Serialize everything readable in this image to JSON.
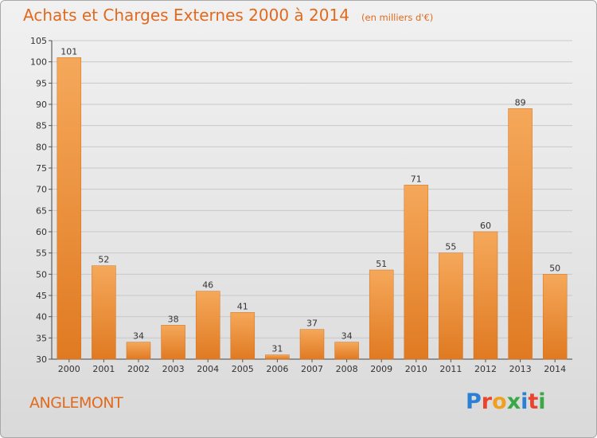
{
  "header": {
    "title": "Achats et Charges Externes 2000 à 2014",
    "subtitle": "(en milliers d'€)"
  },
  "footer": {
    "commune": "ANGLEMONT",
    "brand_letters": [
      "P",
      "r",
      "o",
      "x",
      "i",
      "t",
      "i"
    ]
  },
  "colors": {
    "accent": "#e06a1e",
    "bar_light": "#f5a85a",
    "bar_dark": "#e07a22",
    "brand": [
      "#2b7fd4",
      "#e8452c",
      "#f0a020",
      "#3aa845",
      "#2b7fd4",
      "#e8452c",
      "#3aa845"
    ]
  },
  "chart_data": {
    "type": "bar",
    "title": "Achats et Charges Externes 2000 à 2014",
    "subtitle": "(en milliers d'€)",
    "categories": [
      "2000",
      "2001",
      "2002",
      "2003",
      "2004",
      "2005",
      "2006",
      "2007",
      "2008",
      "2009",
      "2010",
      "2011",
      "2012",
      "2013",
      "2014"
    ],
    "values": [
      101,
      52,
      34,
      38,
      46,
      41,
      31,
      37,
      34,
      51,
      71,
      55,
      60,
      89,
      50
    ],
    "ylim": [
      30,
      105
    ],
    "yticks": [
      30,
      35,
      40,
      45,
      50,
      55,
      60,
      65,
      70,
      75,
      80,
      85,
      90,
      95,
      100,
      105
    ],
    "grid": true,
    "xlabel": "",
    "ylabel": ""
  }
}
